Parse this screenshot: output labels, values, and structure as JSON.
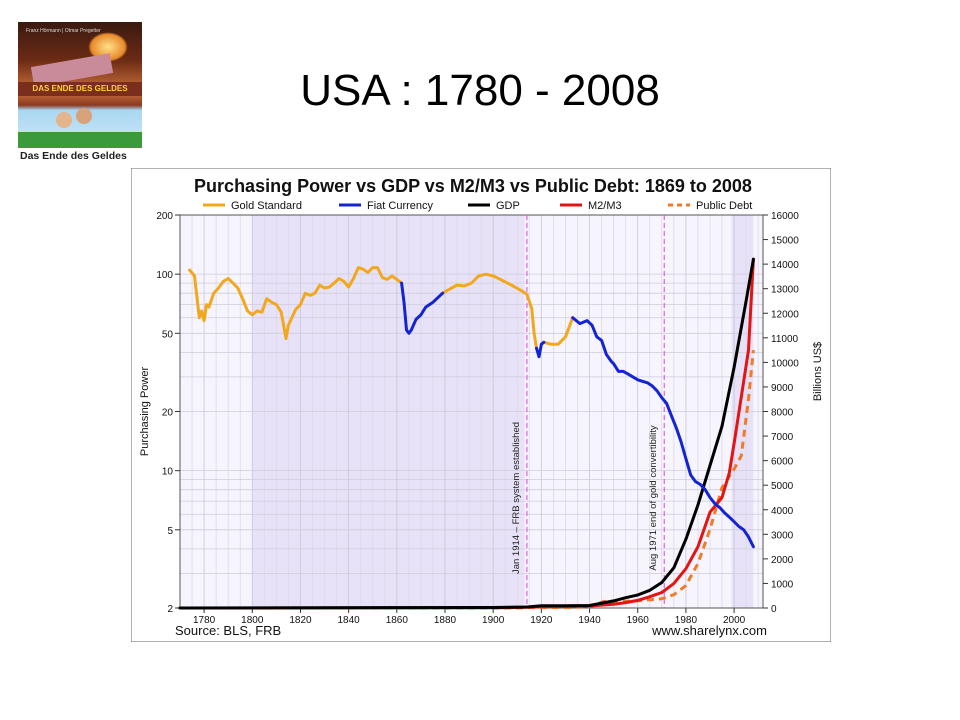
{
  "slide": {
    "title": "USA : 1780 - 2008"
  },
  "book": {
    "caption": "Das Ende des Geldes",
    "authors": "Franz Hörmann | Otmar Pregetter",
    "cover_title": "DAS ENDE DES GELDES"
  },
  "chart_data": {
    "type": "line",
    "title": "Purchasing Power vs GDP vs M2/M3 vs Public Debt: 1869 to 2008",
    "source": "Source: BLS, FRB",
    "credit": "www.sharelynx.com",
    "xlabel": "",
    "ylabel_left": "Purchasing Power",
    "ylabel_right": "Billions US$",
    "x_range": [
      1770,
      2012
    ],
    "x_ticks": [
      1780,
      1800,
      1820,
      1840,
      1860,
      1880,
      1900,
      1920,
      1940,
      1960,
      1980,
      2000
    ],
    "y_left_scale": "log",
    "y_left_range": [
      2,
      200
    ],
    "y_left_ticks": [
      2,
      5,
      10,
      20,
      50,
      100,
      200
    ],
    "y_right_range": [
      0,
      16000
    ],
    "y_right_ticks": [
      0,
      1000,
      2000,
      3000,
      4000,
      5000,
      6000,
      7000,
      8000,
      9000,
      10000,
      11000,
      12000,
      13000,
      14000,
      15000,
      16000
    ],
    "grid": true,
    "legend_position": "top",
    "shaded_bands": [
      [
        1800,
        1913
      ],
      [
        1999,
        2008
      ]
    ],
    "annotations": [
      {
        "text": "Jan 1914 – FRB system established",
        "x": 1914
      },
      {
        "text": "Aug 1971 end of gold convertibility",
        "x": 1971
      }
    ],
    "series": [
      {
        "name": "Gold Standard",
        "axis": "left",
        "color": "#f2a81d",
        "style": "solid",
        "segments": [
          [
            [
              1774,
              105
            ],
            [
              1776,
              98
            ],
            [
              1778,
              60
            ],
            [
              1779,
              65
            ],
            [
              1780,
              58
            ],
            [
              1781,
              70
            ],
            [
              1782,
              68
            ],
            [
              1784,
              80
            ],
            [
              1786,
              85
            ],
            [
              1788,
              92
            ],
            [
              1790,
              95
            ],
            [
              1792,
              90
            ],
            [
              1794,
              85
            ],
            [
              1796,
              75
            ],
            [
              1798,
              65
            ],
            [
              1800,
              62
            ],
            [
              1802,
              65
            ],
            [
              1804,
              64
            ],
            [
              1806,
              75
            ],
            [
              1808,
              72
            ],
            [
              1810,
              70
            ],
            [
              1812,
              64
            ],
            [
              1813,
              55
            ],
            [
              1814,
              47
            ],
            [
              1815,
              55
            ],
            [
              1818,
              66
            ],
            [
              1820,
              70
            ],
            [
              1822,
              80
            ],
            [
              1824,
              78
            ],
            [
              1826,
              80
            ],
            [
              1828,
              88
            ],
            [
              1830,
              85
            ],
            [
              1832,
              86
            ],
            [
              1834,
              90
            ],
            [
              1836,
              95
            ],
            [
              1838,
              92
            ],
            [
              1840,
              86
            ],
            [
              1842,
              95
            ],
            [
              1844,
              108
            ],
            [
              1846,
              106
            ],
            [
              1848,
              102
            ],
            [
              1850,
              108
            ],
            [
              1852,
              108
            ],
            [
              1854,
              96
            ],
            [
              1856,
              94
            ],
            [
              1858,
              98
            ],
            [
              1860,
              94
            ],
            [
              1862,
              90
            ]
          ],
          [
            [
              1879,
              80
            ],
            [
              1882,
              84
            ],
            [
              1885,
              88
            ],
            [
              1888,
              87
            ],
            [
              1891,
              90
            ],
            [
              1894,
              98
            ],
            [
              1897,
              100
            ],
            [
              1900,
              98
            ],
            [
              1903,
              94
            ],
            [
              1906,
              90
            ],
            [
              1909,
              86
            ],
            [
              1912,
              82
            ],
            [
              1914,
              79
            ],
            [
              1916,
              67
            ],
            [
              1917,
              50
            ],
            [
              1918,
              42
            ]
          ],
          [
            [
              1921,
              45
            ],
            [
              1924,
              44
            ],
            [
              1927,
              44
            ],
            [
              1930,
              48
            ],
            [
              1933,
              60
            ]
          ]
        ]
      },
      {
        "name": "Fiat Currency",
        "axis": "left",
        "color": "#1424d2",
        "style": "solid",
        "segments": [
          [
            [
              1862,
              90
            ],
            [
              1863,
              72
            ],
            [
              1864,
              52
            ],
            [
              1865,
              50
            ],
            [
              1866,
              52
            ],
            [
              1868,
              59
            ],
            [
              1870,
              62
            ],
            [
              1872,
              68
            ],
            [
              1875,
              72
            ],
            [
              1879,
              80
            ]
          ],
          [
            [
              1918,
              42
            ],
            [
              1919,
              38
            ],
            [
              1920,
              44
            ],
            [
              1921,
              45
            ]
          ],
          [
            [
              1933,
              60
            ],
            [
              1936,
              56
            ],
            [
              1939,
              58
            ],
            [
              1941,
              55
            ],
            [
              1943,
              48
            ],
            [
              1945,
              46
            ],
            [
              1947,
              39
            ],
            [
              1949,
              36
            ],
            [
              1950,
              35
            ],
            [
              1952,
              32
            ],
            [
              1954,
              32
            ],
            [
              1956,
              31
            ],
            [
              1958,
              30
            ],
            [
              1960,
              29
            ],
            [
              1962,
              28.5
            ],
            [
              1964,
              28
            ],
            [
              1966,
              27
            ],
            [
              1968,
              25.5
            ],
            [
              1970,
              23.5
            ],
            [
              1972,
              22
            ],
            [
              1974,
              19
            ],
            [
              1976,
              16.5
            ],
            [
              1978,
              14
            ],
            [
              1980,
              11.5
            ],
            [
              1982,
              9.5
            ],
            [
              1984,
              8.8
            ],
            [
              1986,
              8.5
            ],
            [
              1988,
              8.0
            ],
            [
              1990,
              7.3
            ],
            [
              1992,
              6.8
            ],
            [
              1994,
              6.5
            ],
            [
              1996,
              6.1
            ],
            [
              1998,
              5.8
            ],
            [
              2000,
              5.5
            ],
            [
              2002,
              5.2
            ],
            [
              2004,
              5.0
            ],
            [
              2006,
              4.6
            ],
            [
              2008,
              4.1
            ]
          ]
        ]
      },
      {
        "name": "GDP",
        "axis": "right",
        "color": "#000000",
        "style": "solid",
        "points": [
          [
            1770,
            0
          ],
          [
            1900,
            20
          ],
          [
            1914,
            40
          ],
          [
            1920,
            90
          ],
          [
            1930,
            90
          ],
          [
            1940,
            100
          ],
          [
            1950,
            290
          ],
          [
            1955,
            420
          ],
          [
            1960,
            530
          ],
          [
            1965,
            720
          ],
          [
            1970,
            1040
          ],
          [
            1975,
            1640
          ],
          [
            1980,
            2800
          ],
          [
            1985,
            4200
          ],
          [
            1990,
            5800
          ],
          [
            1995,
            7400
          ],
          [
            2000,
            9800
          ],
          [
            2005,
            12500
          ],
          [
            2008,
            14200
          ]
        ]
      },
      {
        "name": "M2/M3",
        "axis": "right",
        "color": "#e31414",
        "style": "solid",
        "points": [
          [
            1770,
            0
          ],
          [
            1900,
            10
          ],
          [
            1914,
            30
          ],
          [
            1920,
            50
          ],
          [
            1930,
            60
          ],
          [
            1940,
            80
          ],
          [
            1950,
            150
          ],
          [
            1955,
            220
          ],
          [
            1960,
            310
          ],
          [
            1965,
            460
          ],
          [
            1970,
            630
          ],
          [
            1975,
            1000
          ],
          [
            1980,
            1600
          ],
          [
            1985,
            2500
          ],
          [
            1990,
            3900
          ],
          [
            1995,
            4500
          ],
          [
            1998,
            5500
          ],
          [
            2000,
            6700
          ],
          [
            2003,
            8600
          ],
          [
            2006,
            10500
          ],
          [
            2008,
            14200
          ]
        ]
      },
      {
        "name": "Public Debt",
        "axis": "right",
        "color": "#f07a28",
        "style": "dashed",
        "points": [
          [
            1770,
            0
          ],
          [
            1910,
            0
          ],
          [
            1918,
            25
          ],
          [
            1930,
            17
          ],
          [
            1940,
            43
          ],
          [
            1946,
            270
          ],
          [
            1950,
            257
          ],
          [
            1960,
            290
          ],
          [
            1970,
            380
          ],
          [
            1975,
            540
          ],
          [
            1980,
            910
          ],
          [
            1985,
            1820
          ],
          [
            1990,
            3200
          ],
          [
            1995,
            4900
          ],
          [
            2000,
            5650
          ],
          [
            2003,
            6200
          ],
          [
            2006,
            8500
          ],
          [
            2008,
            10500
          ]
        ]
      }
    ]
  }
}
